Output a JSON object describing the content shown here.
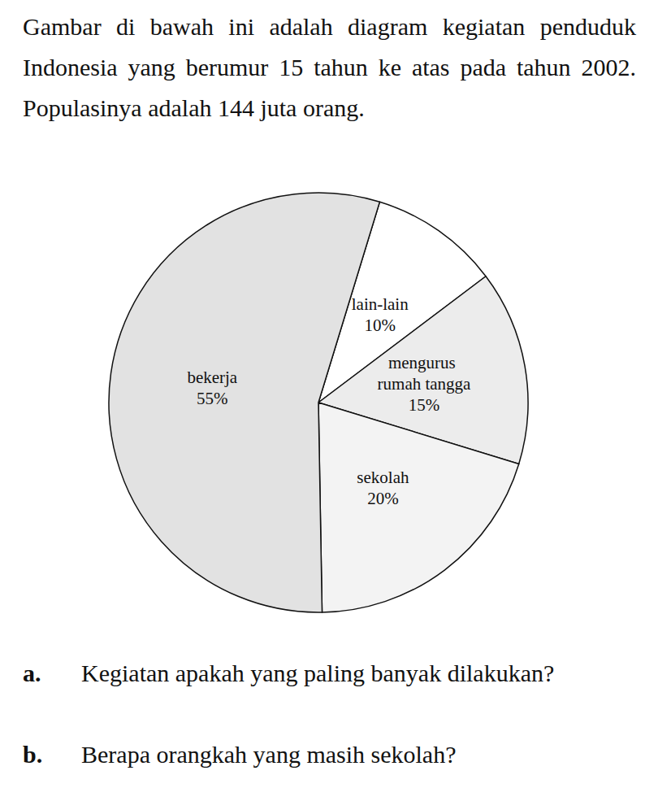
{
  "intro": "Gambar di bawah ini adalah diagram kegiatan penduduk Indonesia yang berumur 15 tahun ke atas pada tahun 2002. Populasinya adalah 144 juta orang.",
  "chart_data": {
    "type": "pie",
    "categories": [
      "lain-lain",
      "mengurus rumah tangga",
      "sekolah",
      "bekerja"
    ],
    "values": [
      10,
      15,
      20,
      55
    ],
    "value_labels": [
      "10%",
      "15%",
      "20%",
      "55%"
    ],
    "colors": [
      "#ffffff",
      "#ececec",
      "#f3f3f3",
      "#e2e2e2"
    ],
    "data_labels": true
  },
  "questions": [
    {
      "label": "a.",
      "text": "Kegiatan apakah yang paling banyak dilakukan?"
    },
    {
      "label": "b.",
      "text": "Berapa orangkah yang masih sekolah?"
    }
  ]
}
